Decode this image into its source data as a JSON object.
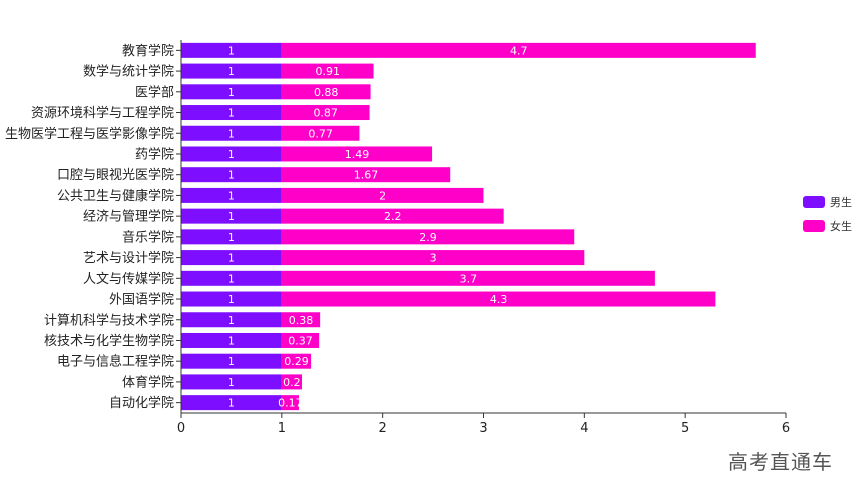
{
  "chart_data": {
    "type": "bar",
    "orientation": "horizontal",
    "stacked": true,
    "categories": [
      "教育学院",
      "数学与统计学院",
      "医学部",
      "资源环境科学与工程学院",
      "生物医学工程与医学影像学院",
      "药学院",
      "口腔与眼视光医学院",
      "公共卫生与健康学院",
      "经济与管理学院",
      "音乐学院",
      "艺术与设计学院",
      "人文与传媒学院",
      "外国语学院",
      "计算机科学与技术学院",
      "核技术与化学生物学院",
      "电子与信息工程学院",
      "体育学院",
      "自动化学院"
    ],
    "series": [
      {
        "name": "男生",
        "color": "#7d0eff",
        "values": [
          1,
          1,
          1,
          1,
          1,
          1,
          1,
          1,
          1,
          1,
          1,
          1,
          1,
          1,
          1,
          1,
          1,
          1
        ]
      },
      {
        "name": "女生",
        "color": "#ff00c8",
        "values": [
          4.7,
          0.91,
          0.88,
          0.87,
          0.77,
          1.49,
          1.67,
          2,
          2.2,
          2.9,
          3,
          3.7,
          4.3,
          0.38,
          0.37,
          0.29,
          0.2,
          0.17
        ]
      }
    ],
    "xlim": [
      0,
      6
    ],
    "xticks": [
      "0",
      "1",
      "2",
      "3",
      "4",
      "5",
      "6"
    ],
    "legend_position": "right"
  },
  "watermark": "高考直通车"
}
